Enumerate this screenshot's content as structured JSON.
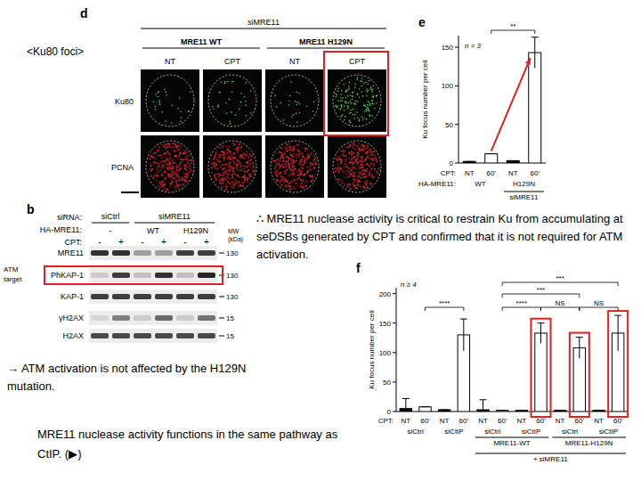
{
  "panels": {
    "d": {
      "label": "d",
      "title": "<Ku80 foci>",
      "header": "siMRE11",
      "groups": [
        "MRE11 WT",
        "MRE11 H129N"
      ],
      "columns": [
        "NT",
        "CPT",
        "NT",
        "CPT"
      ],
      "rows": [
        "Ku80",
        "PCNA"
      ]
    },
    "b": {
      "label": "b",
      "side_label": "ATM target",
      "row_headers": {
        "sirna": "siRNA:",
        "ha": "HA-MRE11:",
        "cpt": "CPT:"
      },
      "sirna": [
        "siCtrl",
        "siMRE11"
      ],
      "ha": [
        "-",
        "WT",
        "H129N"
      ],
      "cpt": [
        "-",
        "+",
        "-",
        "+",
        "-",
        "+"
      ],
      "mw_header": [
        "MW",
        "(kDa)"
      ],
      "bands": [
        {
          "name": "MRE11",
          "mw": "130"
        },
        {
          "name": "PhKAP-1",
          "mw": "130"
        },
        {
          "name": "KAP-1",
          "mw": "130"
        },
        {
          "name": "γH2AX",
          "mw": "15"
        },
        {
          "name": "H2AX",
          "mw": "15"
        }
      ]
    }
  },
  "annotations": {
    "conclusion": "∴ MRE11 nuclease activity is critical to restrain Ku from accumulating at seDSBs generated by CPT and confirmed that it is not required for ATM activation.",
    "atm": "→ ATM activation is not affected by the H129N mutation.",
    "ctip": "MRE11 nuclease activity functions in the same pathway as CtIP. (▶)"
  },
  "chart_data": [
    {
      "type": "bar",
      "panel": "e",
      "ylabel": "Ku focus number per cell",
      "annotation": "n = 3",
      "significance": [
        "**"
      ],
      "xlabel": "CPT:",
      "categories": [
        "NT",
        "60'",
        "NT",
        "60'"
      ],
      "values": [
        2,
        12,
        3,
        143
      ],
      "errors": [
        0,
        0,
        0,
        20
      ],
      "colors": [
        "#000000",
        "#ffffff",
        "#000000",
        "#ffffff"
      ],
      "groups": {
        "label": "HA-MRE11:",
        "names": [
          "WT",
          "H129N"
        ]
      },
      "footer": "siMRE11",
      "ylim": [
        0,
        165
      ],
      "yticks": [
        0,
        50,
        100,
        150
      ]
    },
    {
      "type": "bar",
      "panel": "f",
      "ylabel": "Ku focus number per cell",
      "annotation": "n ≥ 4",
      "significance": [
        "****",
        "****",
        "NS",
        "NS",
        "***",
        "***"
      ],
      "xlabel": "CPT:",
      "categories": [
        "NT",
        "60'",
        "NT",
        "60'",
        "NT",
        "60'",
        "NT",
        "60'",
        "NT",
        "60'",
        "NT",
        "60'"
      ],
      "values": [
        5,
        8,
        3,
        130,
        3,
        2,
        2,
        133,
        2,
        108,
        2,
        133
      ],
      "errors": [
        17,
        0,
        0,
        27,
        17,
        0,
        0,
        17,
        0,
        18,
        0,
        30
      ],
      "colors": [
        "#000000",
        "#ffffff",
        "#000000",
        "#ffffff",
        "#000000",
        "#ffffff",
        "#000000",
        "#ffffff",
        "#000000",
        "#ffffff",
        "#000000",
        "#ffffff"
      ],
      "groups": {
        "names": [
          "siCtrl",
          "siCtIP",
          "siCtrl",
          "siCtIP",
          "siCtrl",
          "siCtIP"
        ]
      },
      "supergroups": [
        "MRE11-WT",
        "MRE11-H129N"
      ],
      "footer": "+ siMRE11",
      "ylim": [
        0,
        210
      ],
      "yticks": [
        0,
        50,
        100,
        150,
        200
      ]
    }
  ]
}
